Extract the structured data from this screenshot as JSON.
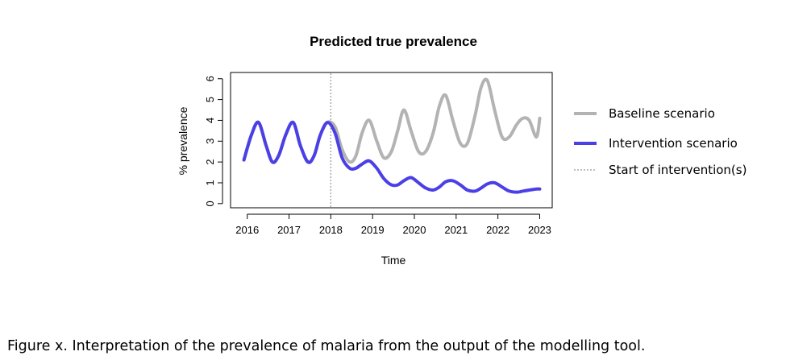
{
  "chart_data": {
    "type": "line",
    "title": "Predicted true prevalence",
    "xlabel": "Time",
    "ylabel": "% prevalence",
    "xlim": [
      2015.6,
      2023.3
    ],
    "ylim": [
      -0.2,
      6.3
    ],
    "xticks": [
      2016,
      2017,
      2018,
      2019,
      2020,
      2021,
      2022,
      2023
    ],
    "xtick_labels": [
      "2016",
      "2017",
      "2018",
      "2019",
      "2020",
      "2021",
      "2022",
      "2023"
    ],
    "yticks": [
      0,
      1,
      2,
      3,
      4,
      5,
      6
    ],
    "ytick_labels": [
      "0",
      "1",
      "2",
      "3",
      "4",
      "5",
      "6"
    ],
    "legend_position": "right",
    "intervention_start": 2018.0,
    "series": [
      {
        "name": "Baseline scenario",
        "color": "#b3b3b3",
        "x": [
          2015.92,
          2016.1,
          2016.27,
          2016.45,
          2016.6,
          2016.75,
          2016.92,
          2017.1,
          2017.27,
          2017.45,
          2017.6,
          2017.75,
          2017.92,
          2018.1,
          2018.27,
          2018.45,
          2018.6,
          2018.75,
          2018.92,
          2019.1,
          2019.27,
          2019.45,
          2019.6,
          2019.75,
          2019.92,
          2020.1,
          2020.27,
          2020.45,
          2020.6,
          2020.75,
          2020.92,
          2021.1,
          2021.27,
          2021.45,
          2021.6,
          2021.75,
          2021.92,
          2022.1,
          2022.27,
          2022.45,
          2022.6,
          2022.75,
          2022.92,
          2023.0
        ],
        "values": [
          2.1,
          3.3,
          3.9,
          2.8,
          2.0,
          2.3,
          3.3,
          3.9,
          2.8,
          2.0,
          2.3,
          3.3,
          3.9,
          3.7,
          2.6,
          2.0,
          2.3,
          3.4,
          4.0,
          3.0,
          2.2,
          2.5,
          3.5,
          4.5,
          3.5,
          2.5,
          2.5,
          3.4,
          4.7,
          5.2,
          4.0,
          2.9,
          2.9,
          4.2,
          5.6,
          5.9,
          4.5,
          3.2,
          3.2,
          3.8,
          4.1,
          4.0,
          3.2,
          4.1
        ]
      },
      {
        "name": "Intervention scenario",
        "color": "#4b3fe6",
        "x": [
          2015.92,
          2016.1,
          2016.27,
          2016.45,
          2016.6,
          2016.75,
          2016.92,
          2017.1,
          2017.27,
          2017.45,
          2017.6,
          2017.75,
          2017.92,
          2018.1,
          2018.27,
          2018.45,
          2018.6,
          2018.75,
          2018.92,
          2019.1,
          2019.27,
          2019.45,
          2019.6,
          2019.75,
          2019.92,
          2020.1,
          2020.27,
          2020.45,
          2020.6,
          2020.75,
          2020.92,
          2021.1,
          2021.27,
          2021.45,
          2021.6,
          2021.75,
          2021.92,
          2022.1,
          2022.27,
          2022.45,
          2022.6,
          2022.75,
          2022.92,
          2023.0
        ],
        "values": [
          2.1,
          3.3,
          3.9,
          2.8,
          2.0,
          2.3,
          3.3,
          3.9,
          2.8,
          2.0,
          2.3,
          3.3,
          3.9,
          3.4,
          2.2,
          1.7,
          1.7,
          1.9,
          2.05,
          1.7,
          1.2,
          0.9,
          0.9,
          1.1,
          1.25,
          1.0,
          0.75,
          0.65,
          0.8,
          1.05,
          1.1,
          0.9,
          0.65,
          0.6,
          0.75,
          0.95,
          1.0,
          0.8,
          0.6,
          0.55,
          0.6,
          0.65,
          0.7,
          0.7
        ]
      }
    ]
  },
  "legend": {
    "items": [
      {
        "label": "Baseline scenario",
        "color": "#b3b3b3",
        "style": "solid"
      },
      {
        "label": "Intervention scenario",
        "color": "#4b3fe6",
        "style": "solid"
      },
      {
        "label": "Start of intervention(s)",
        "color": "#999999",
        "style": "dotted"
      }
    ]
  },
  "caption": "Figure x. Interpretation of the prevalence of malaria from the output of the modelling tool."
}
